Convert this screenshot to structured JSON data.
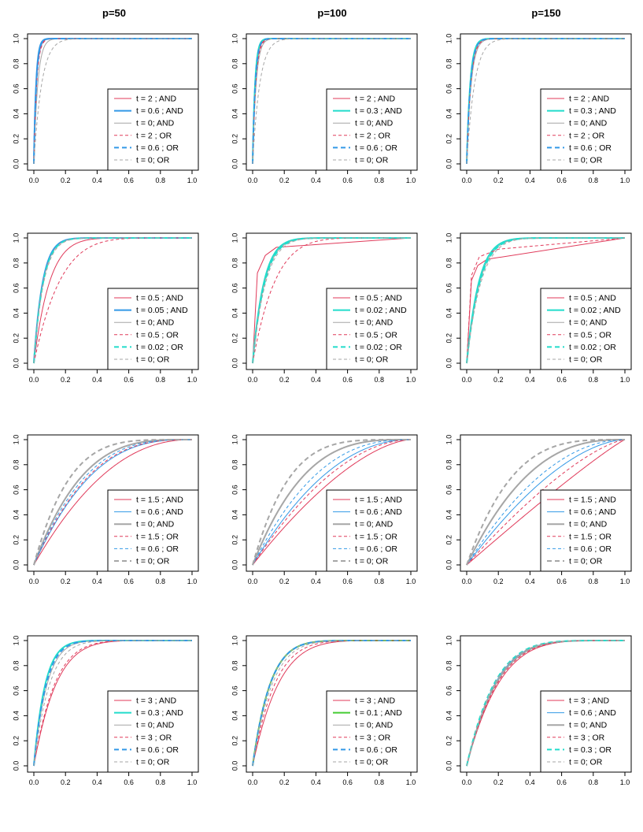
{
  "column_titles": [
    "p=50",
    "p=100",
    "p=150"
  ],
  "styles": {
    "red": "#e03a5a",
    "blue": "#3399e6",
    "cyan": "#22dccb",
    "green": "#44cc33",
    "gray": "#a6a6a6"
  },
  "chart_data": [
    {
      "id": "r1c1",
      "type": "line",
      "x_ticks": [
        "0.0",
        "0.2",
        "0.4",
        "0.6",
        "0.8",
        "1.0"
      ],
      "y_ticks": [
        "0.0",
        "0.2",
        "0.4",
        "0.6",
        "0.8",
        "1.0"
      ],
      "xlim": [
        0,
        1
      ],
      "ylim": [
        0,
        1
      ],
      "legend_placement": "bottom-right",
      "series": [
        {
          "name": "t = 2 ; AND",
          "color": "red",
          "dash": "solid",
          "width": 1,
          "auc_k": 60
        },
        {
          "name": "t = 0.6 ; AND",
          "color": "blue",
          "dash": "solid",
          "width": 2,
          "auc_k": 70
        },
        {
          "name": "t = 0; AND",
          "color": "gray",
          "dash": "solid",
          "width": 1,
          "auc_k": 40
        },
        {
          "name": "t = 2 ; OR",
          "color": "red",
          "dash": "dashed",
          "width": 1,
          "auc_k": 55
        },
        {
          "name": "t = 0.6 ; OR",
          "color": "blue",
          "dash": "dashed",
          "width": 2,
          "auc_k": 65
        },
        {
          "name": "t = 0; OR",
          "color": "gray",
          "dash": "dashed",
          "width": 1,
          "auc_k": 20
        }
      ]
    },
    {
      "id": "r1c2",
      "type": "line",
      "x_ticks": [
        "0.0",
        "0.2",
        "0.4",
        "0.6",
        "0.8",
        "1.0"
      ],
      "y_ticks": [
        "0.0",
        "0.2",
        "0.4",
        "0.6",
        "0.8",
        "1.0"
      ],
      "xlim": [
        0,
        1
      ],
      "ylim": [
        0,
        1
      ],
      "legend_placement": "bottom-right",
      "series": [
        {
          "name": "t = 2 ; AND",
          "color": "red",
          "dash": "solid",
          "width": 1,
          "auc_k": 55
        },
        {
          "name": "t = 0.3 ; AND",
          "color": "cyan",
          "dash": "solid",
          "width": 2,
          "auc_k": 65
        },
        {
          "name": "t = 0; AND",
          "color": "gray",
          "dash": "solid",
          "width": 1,
          "auc_k": 45
        },
        {
          "name": "t = 2 ; OR",
          "color": "red",
          "dash": "dashed",
          "width": 1,
          "auc_k": 50
        },
        {
          "name": "t = 0.6 ; OR",
          "color": "blue",
          "dash": "dashed",
          "width": 2,
          "auc_k": 60
        },
        {
          "name": "t = 0; OR",
          "color": "gray",
          "dash": "dashed",
          "width": 1,
          "auc_k": 22
        }
      ]
    },
    {
      "id": "r1c3",
      "type": "line",
      "x_ticks": [
        "0.0",
        "0.2",
        "0.4",
        "0.6",
        "0.8",
        "1.0"
      ],
      "y_ticks": [
        "0.0",
        "0.2",
        "0.4",
        "0.6",
        "0.8",
        "1.0"
      ],
      "xlim": [
        0,
        1
      ],
      "ylim": [
        0,
        1
      ],
      "legend_placement": "bottom-right",
      "series": [
        {
          "name": "t = 2 ; AND",
          "color": "red",
          "dash": "solid",
          "width": 1,
          "auc_k": 40
        },
        {
          "name": "t = 0.3 ; AND",
          "color": "cyan",
          "dash": "solid",
          "width": 2,
          "auc_k": 45
        },
        {
          "name": "t = 0; AND",
          "color": "gray",
          "dash": "solid",
          "width": 1,
          "auc_k": 35
        },
        {
          "name": "t = 2 ; OR",
          "color": "red",
          "dash": "dashed",
          "width": 1,
          "auc_k": 38
        },
        {
          "name": "t = 0.6 ; OR",
          "color": "blue",
          "dash": "dashed",
          "width": 2,
          "auc_k": 42
        },
        {
          "name": "t = 0; OR",
          "color": "gray",
          "dash": "dashed",
          "width": 1,
          "auc_k": 20
        }
      ]
    },
    {
      "id": "r2c1",
      "type": "line",
      "x_ticks": [
        "0.0",
        "0.2",
        "0.4",
        "0.6",
        "0.8",
        "1.0"
      ],
      "y_ticks": [
        "0.0",
        "0.2",
        "0.4",
        "0.6",
        "0.8",
        "1.0"
      ],
      "xlim": [
        0,
        1
      ],
      "ylim": [
        0,
        1
      ],
      "legend_placement": "bottom-right",
      "series": [
        {
          "name": "t = 0.5 ; AND",
          "color": "red",
          "dash": "solid",
          "width": 1,
          "auc_k": 10
        },
        {
          "name": "t = 0.05 ; AND",
          "color": "blue",
          "dash": "solid",
          "width": 2,
          "auc_k": 18
        },
        {
          "name": "t = 0; AND",
          "color": "gray",
          "dash": "solid",
          "width": 1,
          "auc_k": 17
        },
        {
          "name": "t = 0.5 ; OR",
          "color": "red",
          "dash": "dashed",
          "width": 1,
          "auc_k": 6
        },
        {
          "name": "t = 0.02 ; OR",
          "color": "cyan",
          "dash": "dashed",
          "width": 2,
          "auc_k": 17
        },
        {
          "name": "t = 0; OR",
          "color": "gray",
          "dash": "dashed",
          "width": 1,
          "auc_k": 16
        }
      ]
    },
    {
      "id": "r2c2",
      "type": "line",
      "x_ticks": [
        "0.0",
        "0.2",
        "0.4",
        "0.6",
        "0.8",
        "1.0"
      ],
      "y_ticks": [
        "0.0",
        "0.2",
        "0.4",
        "0.6",
        "0.8",
        "1.0"
      ],
      "xlim": [
        0,
        1
      ],
      "ylim": [
        0,
        1
      ],
      "legend_placement": "bottom-right",
      "series": [
        {
          "name": "t = 0.5 ; AND",
          "color": "red",
          "dash": "solid",
          "width": 1,
          "points": [
            [
              0,
              0
            ],
            [
              0.03,
              0.72
            ],
            [
              0.08,
              0.86
            ],
            [
              0.15,
              0.925
            ],
            [
              1,
              1
            ]
          ]
        },
        {
          "name": "t = 0.02 ; AND",
          "color": "cyan",
          "dash": "solid",
          "width": 2,
          "auc_k": 14
        },
        {
          "name": "t = 0; AND",
          "color": "gray",
          "dash": "solid",
          "width": 1,
          "auc_k": 13
        },
        {
          "name": "t = 0.5 ; OR",
          "color": "red",
          "dash": "dashed",
          "width": 1,
          "auc_k": 7
        },
        {
          "name": "t = 0.02 ; OR",
          "color": "cyan",
          "dash": "dashed",
          "width": 2,
          "auc_k": 13
        },
        {
          "name": "t = 0; OR",
          "color": "gray",
          "dash": "dashed",
          "width": 1,
          "auc_k": 12
        }
      ]
    },
    {
      "id": "r2c3",
      "type": "line",
      "x_ticks": [
        "0.0",
        "0.2",
        "0.4",
        "0.6",
        "0.8",
        "1.0"
      ],
      "y_ticks": [
        "0.0",
        "0.2",
        "0.4",
        "0.6",
        "0.8",
        "1.0"
      ],
      "xlim": [
        0,
        1
      ],
      "ylim": [
        0,
        1
      ],
      "legend_placement": "bottom-right",
      "series": [
        {
          "name": "t = 0.5 ; AND",
          "color": "red",
          "dash": "solid",
          "width": 1,
          "points": [
            [
              0,
              0
            ],
            [
              0.03,
              0.66
            ],
            [
              0.07,
              0.78
            ],
            [
              0.13,
              0.83
            ],
            [
              1,
              1
            ]
          ]
        },
        {
          "name": "t = 0.02 ; AND",
          "color": "cyan",
          "dash": "solid",
          "width": 2,
          "auc_k": 13
        },
        {
          "name": "t = 0; AND",
          "color": "gray",
          "dash": "solid",
          "width": 1,
          "auc_k": 12
        },
        {
          "name": "t = 0.5 ; OR",
          "color": "red",
          "dash": "dashed",
          "width": 1,
          "points": [
            [
              0,
              0
            ],
            [
              0.03,
              0.7
            ],
            [
              0.08,
              0.85
            ],
            [
              0.2,
              0.91
            ],
            [
              1,
              1
            ]
          ]
        },
        {
          "name": "t = 0.02 ; OR",
          "color": "cyan",
          "dash": "dashed",
          "width": 2,
          "auc_k": 12
        },
        {
          "name": "t = 0; OR",
          "color": "gray",
          "dash": "dashed",
          "width": 1,
          "auc_k": 11
        }
      ]
    },
    {
      "id": "r3c1",
      "type": "line",
      "x_ticks": [
        "0.0",
        "0.2",
        "0.4",
        "0.6",
        "0.8",
        "1.0"
      ],
      "y_ticks": [
        "0.0",
        "0.2",
        "0.4",
        "0.6",
        "0.8",
        "1.0"
      ],
      "xlim": [
        0,
        1
      ],
      "ylim": [
        0,
        1
      ],
      "legend_placement": "bottom-right",
      "series": [
        {
          "name": "t = 1.5 ; AND",
          "color": "red",
          "dash": "solid",
          "width": 1,
          "auc_k": 2.2
        },
        {
          "name": "t = 0.6 ; AND",
          "color": "blue",
          "dash": "solid",
          "width": 1,
          "auc_k": 2.8
        },
        {
          "name": "t = 0; AND",
          "color": "gray",
          "dash": "solid",
          "width": 2,
          "auc_k": 3.4
        },
        {
          "name": "t = 1.5 ; OR",
          "color": "red",
          "dash": "dashed",
          "width": 1,
          "auc_k": 2.9
        },
        {
          "name": "t = 0.6 ; OR",
          "color": "blue",
          "dash": "dashed",
          "width": 1,
          "auc_k": 3.1
        },
        {
          "name": "t = 0; OR",
          "color": "gray",
          "dash": "dashed",
          "width": 2,
          "auc_k": 4.6
        }
      ]
    },
    {
      "id": "r3c2",
      "type": "line",
      "x_ticks": [
        "0.0",
        "0.2",
        "0.4",
        "0.6",
        "0.8",
        "1.0"
      ],
      "y_ticks": [
        "0.0",
        "0.2",
        "0.4",
        "0.6",
        "0.8",
        "1.0"
      ],
      "xlim": [
        0,
        1
      ],
      "ylim": [
        0,
        1
      ],
      "legend_placement": "bottom-right",
      "series": [
        {
          "name": "t = 1.5 ; AND",
          "color": "red",
          "dash": "solid",
          "width": 1,
          "auc_k": 1.6
        },
        {
          "name": "t = 0.6 ; AND",
          "color": "blue",
          "dash": "solid",
          "width": 1,
          "auc_k": 2.1
        },
        {
          "name": "t = 0; AND",
          "color": "gray",
          "dash": "solid",
          "width": 2,
          "auc_k": 3.2
        },
        {
          "name": "t = 1.5 ; OR",
          "color": "red",
          "dash": "dashed",
          "width": 1,
          "auc_k": 1.9
        },
        {
          "name": "t = 0.6 ; OR",
          "color": "blue",
          "dash": "dashed",
          "width": 1,
          "auc_k": 2.5
        },
        {
          "name": "t = 0; OR",
          "color": "gray",
          "dash": "dashed",
          "width": 2,
          "auc_k": 4.5
        }
      ]
    },
    {
      "id": "r3c3",
      "type": "line",
      "x_ticks": [
        "0.0",
        "0.2",
        "0.4",
        "0.6",
        "0.8",
        "1.0"
      ],
      "y_ticks": [
        "0.0",
        "0.2",
        "0.4",
        "0.6",
        "0.8",
        "1.0"
      ],
      "xlim": [
        0,
        1
      ],
      "ylim": [
        0,
        1
      ],
      "legend_placement": "bottom-right",
      "series": [
        {
          "name": "t = 1.5 ; AND",
          "color": "red",
          "dash": "solid",
          "width": 1,
          "auc_k": 1.1
        },
        {
          "name": "t = 0.6 ; AND",
          "color": "blue",
          "dash": "solid",
          "width": 1,
          "auc_k": 1.7
        },
        {
          "name": "t = 0; AND",
          "color": "gray",
          "dash": "solid",
          "width": 2,
          "auc_k": 2.6
        },
        {
          "name": "t = 1.5 ; OR",
          "color": "red",
          "dash": "dashed",
          "width": 1,
          "auc_k": 1.4
        },
        {
          "name": "t = 0.6 ; OR",
          "color": "blue",
          "dash": "dashed",
          "width": 1,
          "auc_k": 2.0
        },
        {
          "name": "t = 0; OR",
          "color": "gray",
          "dash": "dashed",
          "width": 2,
          "auc_k": 3.6
        }
      ]
    },
    {
      "id": "r4c1",
      "type": "line",
      "x_ticks": [
        "0.0",
        "0.2",
        "0.4",
        "0.6",
        "0.8",
        "1.0"
      ],
      "y_ticks": [
        "0.0",
        "0.2",
        "0.4",
        "0.6",
        "0.8",
        "1.0"
      ],
      "xlim": [
        0,
        1
      ],
      "ylim": [
        0,
        1
      ],
      "legend_placement": "bottom-right",
      "series": [
        {
          "name": "t = 3 ; AND",
          "color": "red",
          "dash": "solid",
          "width": 1,
          "auc_k": 7
        },
        {
          "name": "t = 0.3 ; AND",
          "color": "cyan",
          "dash": "solid",
          "width": 2,
          "auc_k": 14
        },
        {
          "name": "t = 0; AND",
          "color": "gray",
          "dash": "solid",
          "width": 1,
          "auc_k": 12
        },
        {
          "name": "t = 3 ; OR",
          "color": "red",
          "dash": "dashed",
          "width": 1,
          "auc_k": 7.5
        },
        {
          "name": "t = 0.6 ; OR",
          "color": "blue",
          "dash": "dashed",
          "width": 2,
          "auc_k": 13
        },
        {
          "name": "t = 0; OR",
          "color": "gray",
          "dash": "dashed",
          "width": 1,
          "auc_k": 10
        }
      ]
    },
    {
      "id": "r4c2",
      "type": "line",
      "x_ticks": [
        "0.0",
        "0.2",
        "0.4",
        "0.6",
        "0.8",
        "1.0"
      ],
      "y_ticks": [
        "0.0",
        "0.2",
        "0.4",
        "0.6",
        "0.8",
        "1.0"
      ],
      "xlim": [
        0,
        1
      ],
      "ylim": [
        0,
        1
      ],
      "legend_placement": "bottom-right",
      "series": [
        {
          "name": "t = 3 ; AND",
          "color": "red",
          "dash": "solid",
          "width": 1,
          "auc_k": 6
        },
        {
          "name": "t = 0.1 ; AND",
          "color": "green",
          "dash": "solid",
          "width": 2,
          "auc_k": 9
        },
        {
          "name": "t = 0; AND",
          "color": "gray",
          "dash": "solid",
          "width": 1,
          "auc_k": 9
        },
        {
          "name": "t = 3 ; OR",
          "color": "red",
          "dash": "dashed",
          "width": 1,
          "auc_k": 7
        },
        {
          "name": "t = 0.6 ; OR",
          "color": "blue",
          "dash": "dashed",
          "width": 2,
          "auc_k": 9
        },
        {
          "name": "t = 0; OR",
          "color": "gray",
          "dash": "dashed",
          "width": 1,
          "auc_k": 8
        }
      ]
    },
    {
      "id": "r4c3",
      "type": "line",
      "x_ticks": [
        "0.0",
        "0.2",
        "0.4",
        "0.6",
        "0.8",
        "1.0"
      ],
      "y_ticks": [
        "0.0",
        "0.2",
        "0.4",
        "0.6",
        "0.8",
        "1.0"
      ],
      "xlim": [
        0,
        1
      ],
      "ylim": [
        0,
        1
      ],
      "legend_placement": "bottom-right",
      "series": [
        {
          "name": "t = 3 ; AND",
          "color": "red",
          "dash": "solid",
          "width": 1,
          "auc_k": 4.8
        },
        {
          "name": "t = 0.6 ; AND",
          "color": "blue",
          "dash": "solid",
          "width": 1,
          "auc_k": 5.4
        },
        {
          "name": "t = 0; AND",
          "color": "gray",
          "dash": "solid",
          "width": 2,
          "auc_k": 5.2
        },
        {
          "name": "t = 3 ; OR",
          "color": "red",
          "dash": "dashed",
          "width": 1,
          "auc_k": 5.0
        },
        {
          "name": "t = 0.3 ; OR",
          "color": "cyan",
          "dash": "dashed",
          "width": 2,
          "auc_k": 5.6
        },
        {
          "name": "t = 0; OR",
          "color": "gray",
          "dash": "dashed",
          "width": 1,
          "auc_k": 5.5
        }
      ]
    }
  ]
}
